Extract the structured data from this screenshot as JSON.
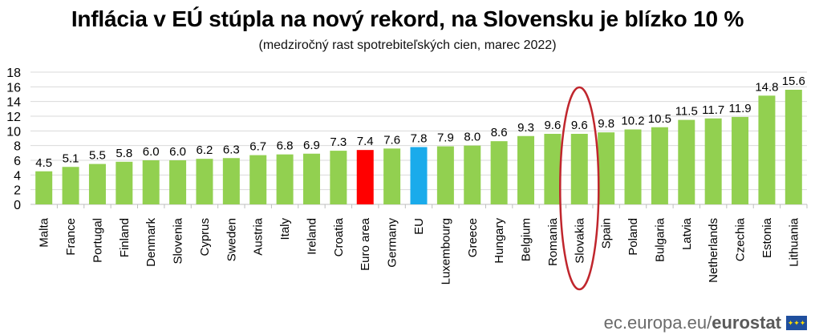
{
  "header": {
    "title": "Inflácia v EÚ stúpla na nový rekord, na Slovensku je blízko 10 %",
    "subtitle": "(medziročný rast spotrebiteľských cien, marec 2022)"
  },
  "source": {
    "prefix": "ec.europa.eu/",
    "brand": "eurostat",
    "icon": "eu-flag-icon"
  },
  "colors": {
    "default_bar": "#92d050",
    "euro_area_bar": "#ff0000",
    "eu_bar": "#1aabeb",
    "highlight_ellipse": "#c0262d",
    "grid": "#d9d9d9"
  },
  "chart_data": {
    "type": "bar",
    "categories": [
      "Malta",
      "France",
      "Portugal",
      "Finland",
      "Denmark",
      "Slovenia",
      "Cyprus",
      "Sweden",
      "Austria",
      "Italy",
      "Ireland",
      "Croatia",
      "Euro area",
      "Germany",
      "EU",
      "Luxembourg",
      "Greece",
      "Hungary",
      "Belgium",
      "Romania",
      "Slovakia",
      "Spain",
      "Poland",
      "Bulgaria",
      "Latvia",
      "Netherlands",
      "Czechia",
      "Estonia",
      "Lithuania"
    ],
    "values": [
      4.5,
      5.1,
      5.5,
      5.8,
      6.0,
      6.0,
      6.2,
      6.3,
      6.7,
      6.8,
      6.9,
      7.3,
      7.4,
      7.6,
      7.8,
      7.9,
      8.0,
      8.6,
      9.3,
      9.6,
      9.6,
      9.8,
      10.2,
      10.5,
      11.5,
      11.7,
      11.9,
      14.8,
      15.6
    ],
    "value_labels": [
      "4.5",
      "5.1",
      "5.5",
      "5.8",
      "6.0",
      "6.0",
      "6.2",
      "6.3",
      "6.7",
      "6.8",
      "6.9",
      "7.3",
      "7.4",
      "7.6",
      "7.8",
      "7.9",
      "8.0",
      "8.6",
      "9.3",
      "9.6",
      "9.6",
      "9.8",
      "10.2",
      "10.5",
      "11.5",
      "11.7",
      "11.9",
      "14.8",
      "15.6"
    ],
    "ylim": [
      0,
      18
    ],
    "yticks": [
      "0",
      "2",
      "4",
      "6",
      "8",
      "10",
      "12",
      "14",
      "16",
      "18"
    ],
    "grid": true,
    "highlighted_category": "Slovakia",
    "xlabel": "",
    "ylabel": ""
  }
}
